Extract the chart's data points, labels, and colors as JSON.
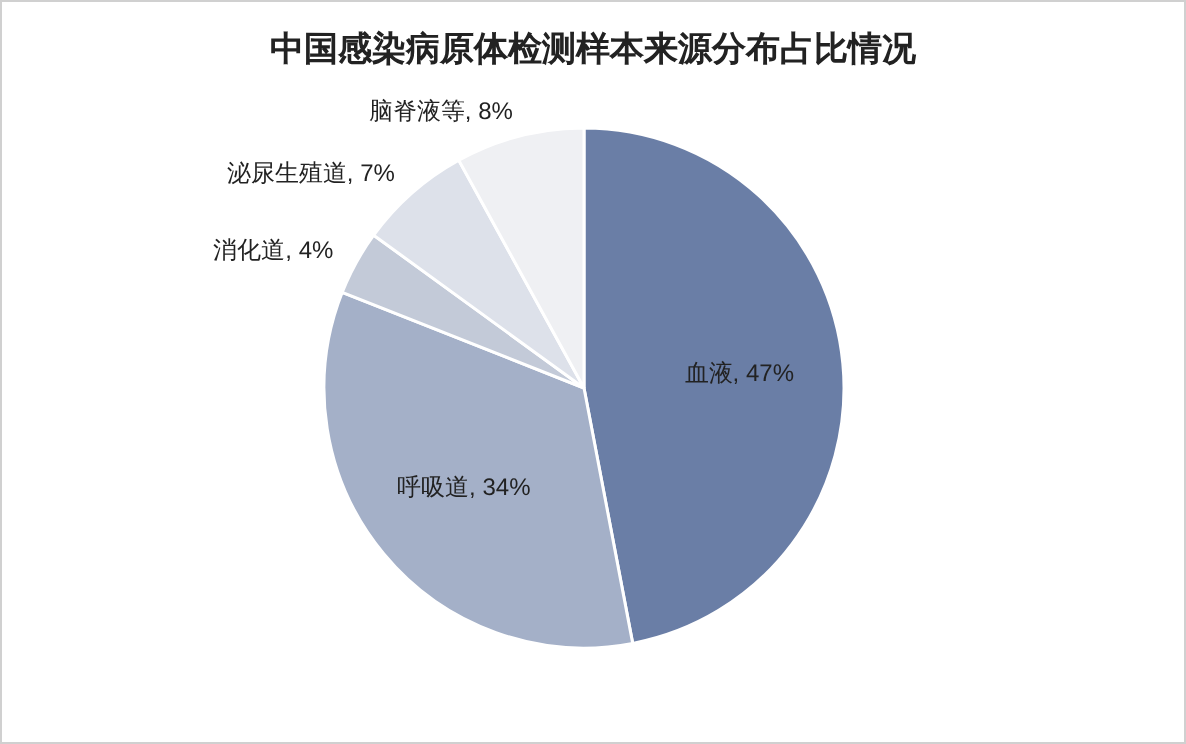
{
  "chart_data": {
    "type": "pie",
    "title": "中国感染病原体检测样本来源分布占比情况",
    "categories": [
      "血液",
      "呼吸道",
      "消化道",
      "泌尿生殖道",
      "脑脊液等"
    ],
    "values": [
      47,
      34,
      4,
      7,
      8
    ],
    "value_labels": [
      ", 47%",
      ", 34%",
      ", 4%",
      ", 7%",
      ", 8%"
    ],
    "colors": [
      "#6a7ea6",
      "#a4b0c8",
      "#c3cad8",
      "#dde1ea",
      "#eff0f3"
    ],
    "legend": false
  }
}
